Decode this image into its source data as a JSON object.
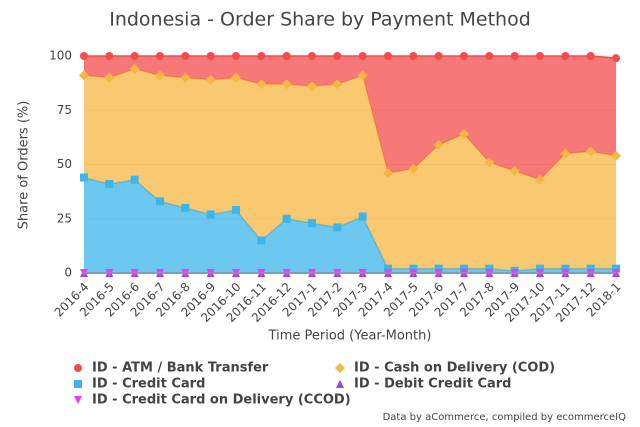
{
  "chart_data": {
    "type": "stacked-area",
    "title": "Indonesia - Order Share by Payment Method",
    "x_label": "Time Period (Year-Month)",
    "y_label": "Share of Orders (%)",
    "source": "Data by aCommerce, compiled by ecommerceIQ",
    "categories": [
      "2016-4",
      "2016-5",
      "2016-6",
      "2016-7",
      "2016-8",
      "2016-9",
      "2016-10",
      "2016-11",
      "2016-12",
      "2017-1",
      "2017-2",
      "2017-3",
      "2017-4",
      "2017-5",
      "2017-6",
      "2017-7",
      "2017-8",
      "2017-9",
      "2017-10",
      "2017-11",
      "2017-12",
      "2018-1"
    ],
    "ylim": [
      0,
      100
    ],
    "yticks": [
      0,
      25,
      50,
      75,
      100
    ],
    "grid": true,
    "series": [
      {
        "name": "ID - ATM / Bank Transfer",
        "color": "#f44b4b",
        "marker": "circle",
        "values": [
          9,
          10,
          6,
          9,
          10,
          11,
          10,
          13,
          13,
          14,
          13,
          9,
          54,
          52,
          41,
          36,
          49,
          53,
          57,
          45,
          44,
          45
        ]
      },
      {
        "name": "ID - Cash on Delivery (COD)",
        "color": "#f5b742",
        "marker": "diamond",
        "values": [
          47,
          49,
          51,
          58,
          60,
          62,
          61,
          72,
          62,
          63,
          66,
          65,
          44,
          46,
          57,
          62,
          49,
          46,
          41,
          53,
          54,
          52
        ]
      },
      {
        "name": "ID - Credit Card",
        "color": "#3bb5ec",
        "marker": "square",
        "values": [
          44,
          41,
          43,
          33,
          30,
          27,
          29,
          15,
          25,
          23,
          21,
          26,
          2,
          2,
          2,
          2,
          2,
          1,
          2,
          2,
          2,
          2
        ]
      },
      {
        "name": "ID - Debit Credit Card",
        "color": "#9b42e8",
        "marker": "triangle",
        "values": [
          0,
          0,
          0,
          0,
          0,
          0,
          0,
          0,
          0,
          0,
          0,
          0,
          0,
          0,
          0,
          0,
          0,
          0,
          0,
          0,
          0,
          0
        ]
      },
      {
        "name": "ID - Credit Card on Delivery (CCOD)",
        "color": "#e63ef0",
        "marker": "triangle-down",
        "values": [
          0,
          0,
          0,
          0,
          0,
          0,
          0,
          0,
          0,
          0,
          0,
          0,
          0,
          0,
          0,
          0,
          0,
          0,
          0,
          0,
          0,
          0
        ]
      }
    ]
  }
}
